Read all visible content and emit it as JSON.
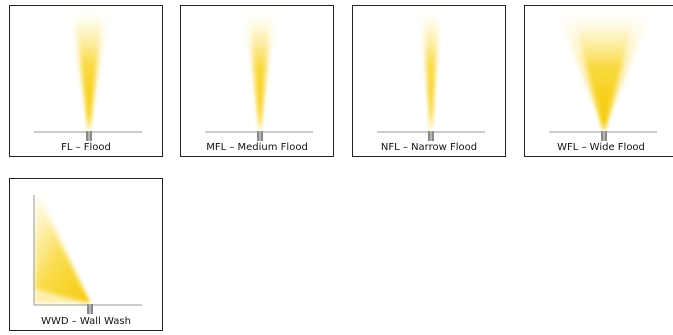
{
  "beams": [
    {
      "label": "FL – Flood"
    },
    {
      "label": "MFL – Medium Flood"
    },
    {
      "label": "NFL – Narrow Flood"
    },
    {
      "label": "WFL – Wide Flood"
    },
    {
      "label": "WWD – Wall Wash"
    }
  ],
  "colors": {
    "beam": "#f5c800",
    "border": "#222222"
  }
}
